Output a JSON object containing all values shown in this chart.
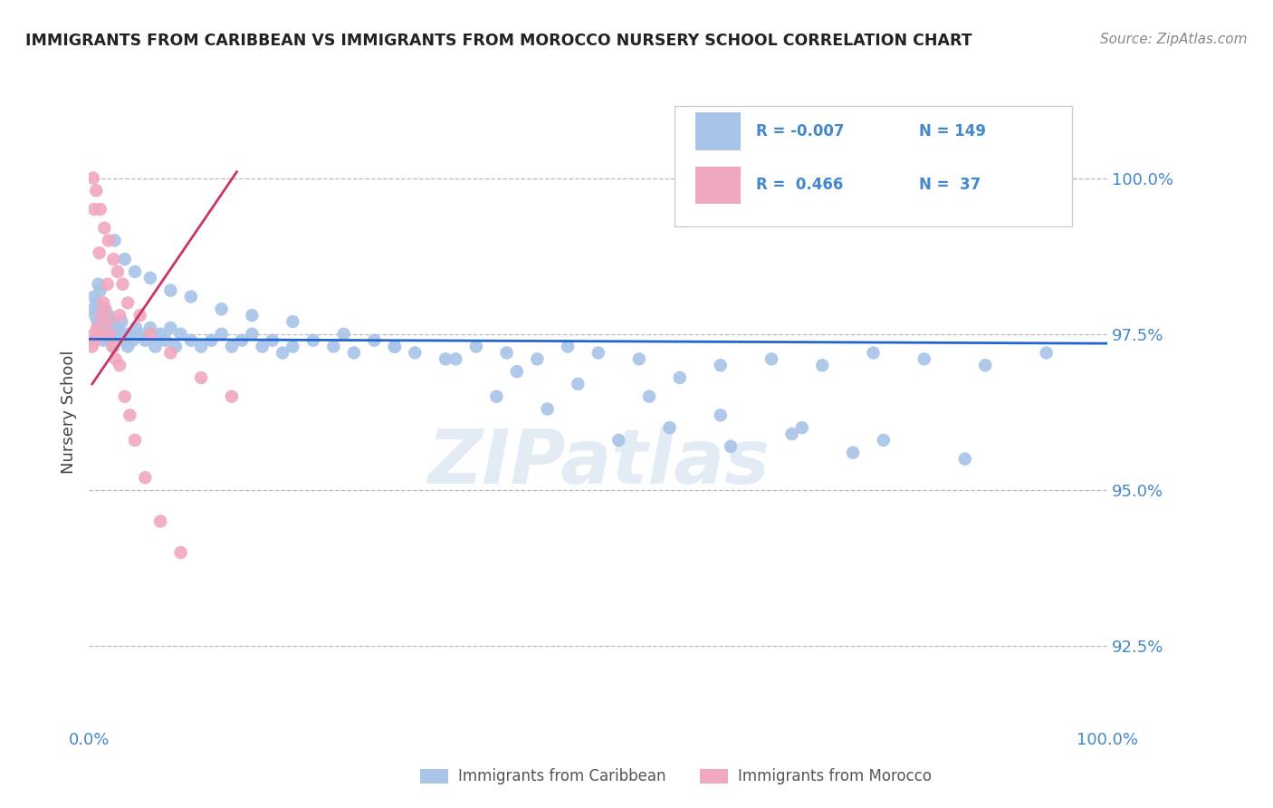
{
  "title": "IMMIGRANTS FROM CARIBBEAN VS IMMIGRANTS FROM MOROCCO NURSERY SCHOOL CORRELATION CHART",
  "source": "Source: ZipAtlas.com",
  "ylabel": "Nursery School",
  "xlim": [
    0.0,
    100.0
  ],
  "ylim": [
    91.2,
    101.3
  ],
  "yticks": [
    92.5,
    95.0,
    97.5,
    100.0
  ],
  "blue_r": "-0.007",
  "blue_n": "149",
  "pink_r": "0.466",
  "pink_n": "37",
  "blue_color": "#a8c4e8",
  "pink_color": "#f0a8c0",
  "trend_blue_color": "#2266cc",
  "trend_pink_color": "#cc3366",
  "grid_color": "#bbbbbb",
  "legend_label_blue": "Immigrants from Caribbean",
  "legend_label_pink": "Immigrants from Morocco",
  "title_color": "#222222",
  "axis_color": "#4488cc",
  "watermark": "ZIPatlas",
  "blue_trend_y_at_0": 97.42,
  "blue_trend_y_at_100": 97.35,
  "pink_trend_x0": 0.3,
  "pink_trend_y0": 96.7,
  "pink_trend_x1": 14.5,
  "pink_trend_y1": 100.1,
  "blue_scatter_x": [
    0.4,
    0.5,
    0.6,
    0.7,
    0.8,
    0.9,
    1.0,
    1.1,
    1.2,
    1.3,
    1.4,
    1.5,
    1.6,
    1.7,
    1.8,
    1.9,
    2.0,
    2.1,
    2.2,
    2.3,
    2.4,
    2.5,
    2.6,
    2.7,
    2.8,
    3.0,
    3.2,
    3.4,
    3.6,
    3.8,
    4.0,
    4.3,
    4.6,
    5.0,
    5.5,
    6.0,
    6.5,
    7.0,
    7.5,
    8.0,
    8.5,
    9.0,
    10.0,
    11.0,
    12.0,
    13.0,
    14.0,
    15.0,
    16.0,
    17.0,
    18.0,
    19.0,
    20.0,
    22.0,
    24.0,
    26.0,
    28.0,
    30.0,
    32.0,
    35.0,
    38.0,
    41.0,
    44.0,
    47.0,
    50.0,
    54.0,
    58.0,
    62.0,
    67.0,
    72.0,
    77.0,
    82.0,
    88.0,
    94.0,
    40.0,
    45.0,
    52.0,
    57.0,
    63.0,
    69.0,
    75.0,
    2.5,
    3.5,
    4.5,
    6.0,
    8.0,
    10.0,
    13.0,
    16.0,
    20.0,
    25.0,
    30.0,
    36.0,
    42.0,
    48.0,
    55.0,
    62.0,
    70.0,
    78.0,
    86.0
  ],
  "blue_scatter_y": [
    97.9,
    98.1,
    97.8,
    98.0,
    97.7,
    98.3,
    97.6,
    98.2,
    97.5,
    97.8,
    97.4,
    97.9,
    97.6,
    97.7,
    97.5,
    97.8,
    97.4,
    97.6,
    97.5,
    97.7,
    97.3,
    97.6,
    97.5,
    97.4,
    97.6,
    97.5,
    97.7,
    97.4,
    97.5,
    97.3,
    97.5,
    97.4,
    97.6,
    97.5,
    97.4,
    97.6,
    97.3,
    97.5,
    97.4,
    97.6,
    97.3,
    97.5,
    97.4,
    97.3,
    97.4,
    97.5,
    97.3,
    97.4,
    97.5,
    97.3,
    97.4,
    97.2,
    97.3,
    97.4,
    97.3,
    97.2,
    97.4,
    97.3,
    97.2,
    97.1,
    97.3,
    97.2,
    97.1,
    97.3,
    97.2,
    97.1,
    96.8,
    97.0,
    97.1,
    97.0,
    97.2,
    97.1,
    97.0,
    97.2,
    96.5,
    96.3,
    95.8,
    96.0,
    95.7,
    95.9,
    95.6,
    99.0,
    98.7,
    98.5,
    98.4,
    98.2,
    98.1,
    97.9,
    97.8,
    97.7,
    97.5,
    97.3,
    97.1,
    96.9,
    96.7,
    96.5,
    96.2,
    96.0,
    95.8,
    95.5
  ],
  "pink_scatter_x": [
    0.3,
    0.5,
    0.6,
    0.8,
    1.0,
    1.2,
    1.4,
    1.6,
    1.8,
    2.0,
    2.3,
    2.6,
    3.0,
    3.5,
    4.0,
    4.5,
    5.5,
    7.0,
    9.0,
    0.4,
    0.7,
    1.1,
    1.5,
    1.9,
    2.4,
    2.8,
    3.3,
    3.8,
    5.0,
    6.0,
    8.0,
    11.0,
    14.0,
    0.5,
    1.0,
    1.8,
    3.0
  ],
  "pink_scatter_y": [
    97.3,
    97.5,
    97.4,
    97.6,
    97.5,
    97.8,
    98.0,
    97.9,
    97.7,
    97.5,
    97.3,
    97.1,
    97.0,
    96.5,
    96.2,
    95.8,
    95.2,
    94.5,
    94.0,
    100.0,
    99.8,
    99.5,
    99.2,
    99.0,
    98.7,
    98.5,
    98.3,
    98.0,
    97.8,
    97.5,
    97.2,
    96.8,
    96.5,
    99.5,
    98.8,
    98.3,
    97.8
  ]
}
